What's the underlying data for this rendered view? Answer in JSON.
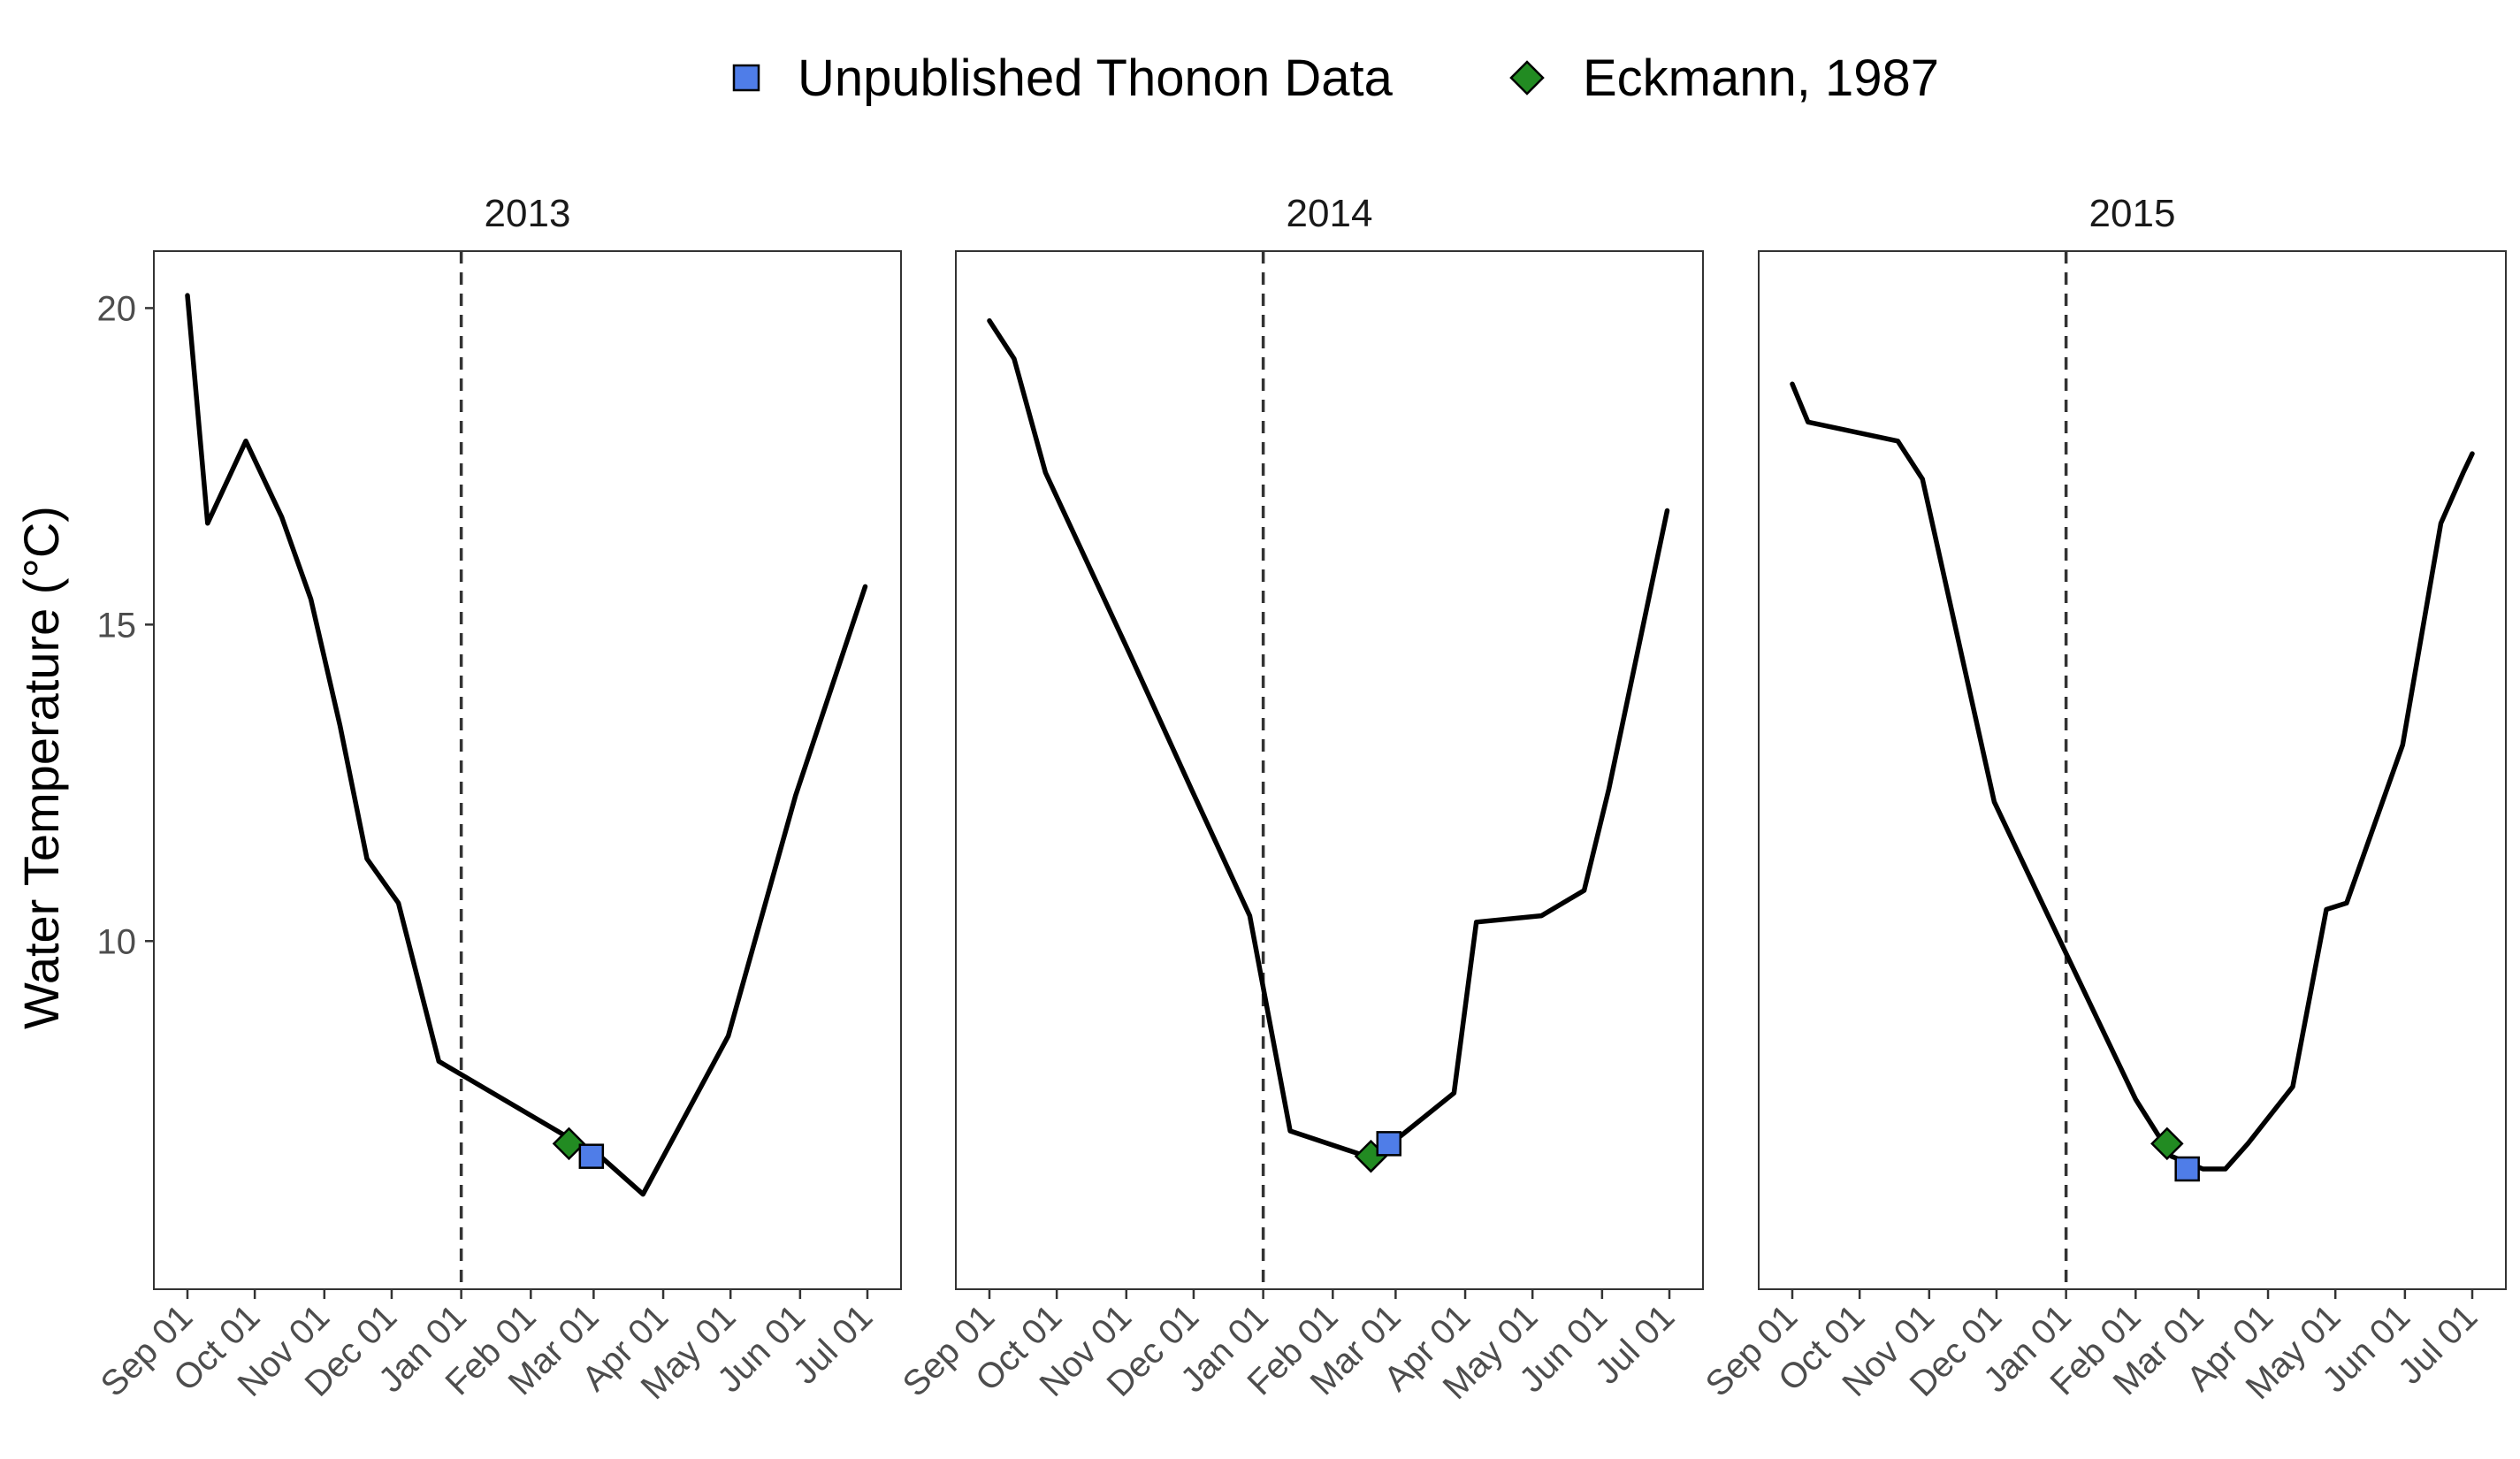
{
  "chart_data": {
    "type": "line",
    "ylabel": "Water Temperature (°C)",
    "xlabel": "",
    "ylim": [
      4.5,
      20.9
    ],
    "yticks": [
      10,
      15,
      20
    ],
    "xticks": [
      "Sep 01",
      "Oct 01",
      "Nov 01",
      "Dec 01",
      "Jan 01",
      "Feb 01",
      "Mar 01",
      "Apr 01",
      "May 01",
      "Jun 01",
      "Jul 01"
    ],
    "xtick_day_offsets": [
      0,
      30,
      61,
      91,
      122,
      153,
      181,
      212,
      242,
      273,
      303
    ],
    "reference_line": {
      "x": "Jan 01",
      "style": "dashed"
    },
    "legend": {
      "position": "top",
      "entries": [
        {
          "label": "Unpublished Thonon Data",
          "shape": "square",
          "color": "#4f7de8"
        },
        {
          "label": "Eckmann, 1987",
          "shape": "diamond",
          "color": "#228b22"
        }
      ]
    },
    "panels": [
      {
        "title": "2013",
        "series": [
          {
            "x": [
              "Sep 01",
              "Sep 10",
              "Sep 27",
              "Oct 13",
              "Oct 26",
              "Nov 08",
              "Nov 20",
              "Dec 04",
              "Dec 22",
              "Mar 04",
              "Mar 23",
              "Apr 30",
              "May 30",
              "Jun 30"
            ],
            "y": [
              20.2,
              16.6,
              17.9,
              16.7,
              15.4,
              13.4,
              11.3,
              10.6,
              8.1,
              6.6,
              6.0,
              8.5,
              12.3,
              15.6
            ]
          }
        ],
        "points": [
          {
            "series": "Unpublished Thonon Data",
            "x": "Feb 28",
            "y": 6.6
          },
          {
            "series": "Eckmann, 1987",
            "x": "Feb 18",
            "y": 6.8
          }
        ]
      },
      {
        "title": "2014",
        "series": [
          {
            "x": [
              "Sep 01",
              "Sep 12",
              "Sep 26",
              "Nov 03",
              "Nov 30",
              "Dec 26",
              "Jan 13",
              "Feb 16",
              "Feb 27",
              "Mar 27",
              "Apr 06",
              "May 05",
              "May 24",
              "Jun 04",
              "Jun 30"
            ],
            "y": [
              19.8,
              19.2,
              17.4,
              14.5,
              12.4,
              10.4,
              7.0,
              6.6,
              6.8,
              7.6,
              10.3,
              10.4,
              10.8,
              12.4,
              16.8
            ]
          }
        ],
        "points": [
          {
            "series": "Unpublished Thonon Data",
            "x": "Feb 26",
            "y": 6.8
          },
          {
            "series": "Eckmann, 1987",
            "x": "Feb 18",
            "y": 6.6
          }
        ]
      },
      {
        "title": "2015",
        "series": [
          {
            "x": [
              "Sep 01",
              "Sep 08",
              "Oct 18",
              "Oct 29",
              "Nov 30",
              "Dec 24",
              "Feb 01",
              "Feb 17",
              "Mar 03",
              "Mar 13",
              "Mar 23",
              "Apr 12",
              "Apr 27",
              "May 06",
              "May 31",
              "Jun 17",
              "Jun 27",
              "Jul 01"
            ],
            "y": [
              18.8,
              18.2,
              17.9,
              17.3,
              12.2,
              10.4,
              7.5,
              6.6,
              6.4,
              6.4,
              6.8,
              7.7,
              10.5,
              10.6,
              13.1,
              16.6,
              17.4,
              17.7
            ]
          }
        ],
        "points": [
          {
            "series": "Unpublished Thonon Data",
            "x": "Feb 24",
            "y": 6.4
          },
          {
            "series": "Eckmann, 1987",
            "x": "Feb 15",
            "y": 6.8
          }
        ]
      }
    ]
  }
}
